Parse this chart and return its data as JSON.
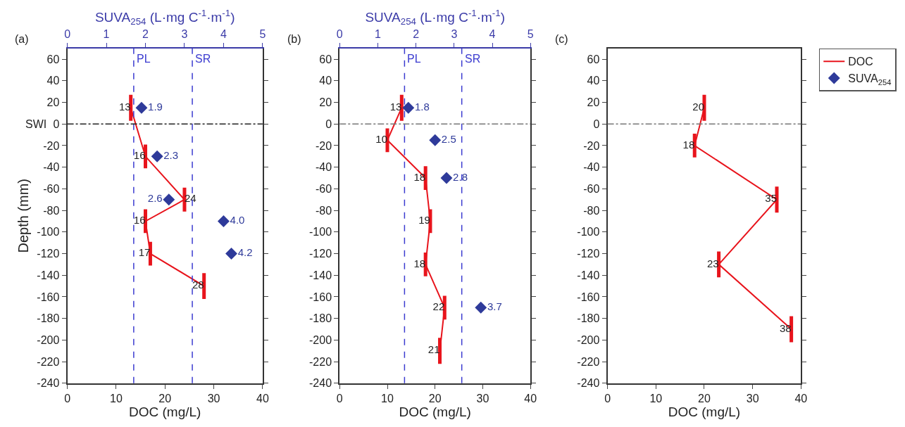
{
  "chart_data": [
    {
      "type": "line",
      "orientation": "horizontal",
      "title": "(a)",
      "xlabel": "DOC (mg/L)",
      "x2label": "SUVA$_{254}$ (L·mg C$^{-1}$·m$^{-1}$)",
      "ylabel": "Depth (mm)",
      "xlim": [
        0,
        40
      ],
      "xticks": [
        0,
        10,
        20,
        30,
        40
      ],
      "x2lim": [
        0,
        5
      ],
      "x2ticks": [
        0,
        1,
        2,
        3,
        4,
        5
      ],
      "ylim": [
        -240,
        70
      ],
      "yticks": [
        -240,
        -220,
        -200,
        -180,
        -160,
        -140,
        -120,
        -100,
        -80,
        -60,
        -40,
        -20,
        0,
        20,
        40,
        60
      ],
      "series": [
        {
          "name": "DOC",
          "color": "#e8141c",
          "x": [
            15,
            -30,
            -70,
            -90,
            -120,
            -150
          ],
          "values": [
            13,
            16,
            24,
            16,
            17,
            28
          ],
          "xerrors": [
            12,
            11,
            11,
            11,
            11,
            12
          ],
          "data_labels": true
        },
        {
          "name": "SUVA$_{254}$",
          "type": "scatter",
          "marker": "diamond",
          "axis": "x2",
          "color": "#2e3a9a",
          "x": [
            15,
            -30,
            -70,
            -90,
            -120
          ],
          "values": [
            1.9,
            2.3,
            2.6,
            4.0,
            4.2
          ],
          "value_labels": [
            "1.9",
            "2.3",
            "2.6",
            "4.0",
            "4.2"
          ]
        }
      ],
      "ref_lines": [
        {
          "axis": "x2",
          "value": 1.7,
          "label": "PL",
          "color": "#3b3bd0",
          "line_style": "dashed"
        },
        {
          "axis": "x2",
          "value": 3.2,
          "label": "SR",
          "color": "#3b3bd0",
          "line_style": "dashed"
        },
        {
          "axis": "y",
          "value": 0,
          "label": "SWI",
          "color": "#222222",
          "line_style": "dashdot"
        }
      ],
      "legend": "right"
    },
    {
      "type": "line",
      "orientation": "horizontal",
      "title": "(b)",
      "xlabel": "DOC (mg/L)",
      "x2label": "SUVA$_{254}$ (L·mg C$^{-1}$·m$^{-1}$)",
      "xlim": [
        0,
        40
      ],
      "xticks": [
        0,
        10,
        20,
        30,
        40
      ],
      "x2lim": [
        0,
        5
      ],
      "x2ticks": [
        0,
        1,
        2,
        3,
        4,
        5
      ],
      "ylim": [
        -240,
        70
      ],
      "yticks": [
        -240,
        -220,
        -200,
        -180,
        -160,
        -140,
        -120,
        -100,
        -80,
        -60,
        -40,
        -20,
        0,
        20,
        40,
        60
      ],
      "series": [
        {
          "color": "#e8141c",
          "x": [
            15,
            -15,
            -50,
            -90,
            -130,
            -170,
            -210
          ],
          "values": [
            13,
            10,
            18,
            19,
            18,
            22,
            21
          ],
          "xerrors": [
            12,
            11,
            11,
            11,
            11,
            11,
            12
          ],
          "data_labels": true
        },
        {
          "type": "scatter",
          "marker": "diamond",
          "axis": "x2",
          "color": "#2e3a9a",
          "x": [
            15,
            -15,
            -50,
            -170
          ],
          "values": [
            1.8,
            2.5,
            2.8,
            3.7
          ],
          "value_labels": [
            "1.8",
            "2.5",
            "2.8",
            "3.7"
          ]
        }
      ],
      "ref_lines": [
        {
          "axis": "x2",
          "value": 1.7,
          "label": "PL",
          "color": "#3b3bd0",
          "line_style": "dashed"
        },
        {
          "axis": "x2",
          "value": 3.2,
          "label": "SR",
          "color": "#3b3bd0",
          "line_style": "dashed"
        },
        {
          "axis": "y",
          "value": 0,
          "color": "#777777",
          "line_style": "dashdot"
        }
      ]
    },
    {
      "type": "line",
      "orientation": "horizontal",
      "title": "(c)",
      "xlabel": "DOC (mg/L)",
      "xlim": [
        0,
        40
      ],
      "xticks": [
        0,
        10,
        20,
        30,
        40
      ],
      "ylim": [
        -240,
        70
      ],
      "yticks": [
        -240,
        -220,
        -200,
        -180,
        -160,
        -140,
        -120,
        -100,
        -80,
        -60,
        -40,
        -20,
        0,
        20,
        40,
        60
      ],
      "series": [
        {
          "color": "#e8141c",
          "x": [
            15,
            -20,
            -70,
            -130,
            -190
          ],
          "values": [
            20,
            18,
            35,
            23,
            38
          ],
          "xerrors": [
            12,
            11,
            12,
            12,
            12
          ],
          "data_labels": true
        }
      ],
      "ref_lines": [
        {
          "axis": "y",
          "value": 0,
          "color": "#777777",
          "line_style": "dashdot"
        }
      ]
    }
  ]
}
